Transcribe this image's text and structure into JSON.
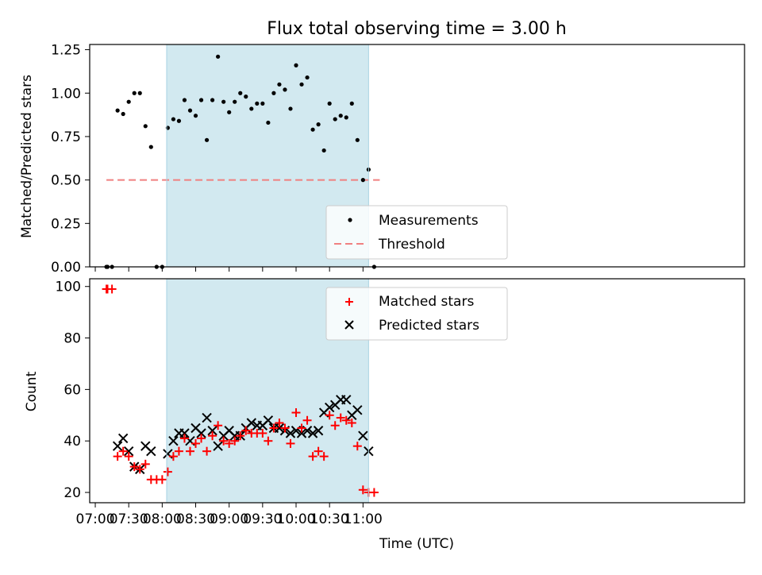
{
  "chart_data": [
    {
      "type": "scatter",
      "title": "Flux total observing time = 3.00 h",
      "xlabel": "",
      "ylabel": "Matched/Predicted stars",
      "ylim": [
        0,
        1.28
      ],
      "xlim_minutes": [
        415,
        1002
      ],
      "yticks": [
        "0.00",
        "0.25",
        "0.50",
        "0.75",
        "1.00",
        "1.25"
      ],
      "ytick_values": [
        0,
        0.25,
        0.5,
        0.75,
        1.0,
        1.25
      ],
      "shaded_span": [
        "08:04",
        "11:05"
      ],
      "shade_color": "#d2e9f0",
      "threshold": {
        "label": "Threshold",
        "value": 0.5,
        "x_start": "07:10",
        "x_end": "11:15",
        "color": "#f08080"
      },
      "legend": {
        "position": "bottom-center",
        "entries": [
          "Measurements",
          "Threshold"
        ]
      },
      "series": [
        {
          "name": "Measurements",
          "color": "#000000",
          "points": [
            [
              "07:10",
              0.0
            ],
            [
              "07:11",
              0.0
            ],
            [
              "07:15",
              0.0
            ],
            [
              "07:20",
              0.9
            ],
            [
              "07:25",
              0.88
            ],
            [
              "07:30",
              0.95
            ],
            [
              "07:35",
              1.0
            ],
            [
              "07:40",
              1.0
            ],
            [
              "07:45",
              0.81
            ],
            [
              "07:50",
              0.69
            ],
            [
              "07:55",
              0.0
            ],
            [
              "08:00",
              0.0
            ],
            [
              "08:05",
              0.8
            ],
            [
              "08:10",
              0.85
            ],
            [
              "08:15",
              0.84
            ],
            [
              "08:20",
              0.96
            ],
            [
              "08:25",
              0.9
            ],
            [
              "08:30",
              0.87
            ],
            [
              "08:35",
              0.96
            ],
            [
              "08:40",
              0.73
            ],
            [
              "08:45",
              0.96
            ],
            [
              "08:50",
              1.21
            ],
            [
              "08:55",
              0.95
            ],
            [
              "09:00",
              0.89
            ],
            [
              "09:05",
              0.95
            ],
            [
              "09:10",
              1.0
            ],
            [
              "09:15",
              0.98
            ],
            [
              "09:20",
              0.91
            ],
            [
              "09:25",
              0.94
            ],
            [
              "09:30",
              0.94
            ],
            [
              "09:35",
              0.83
            ],
            [
              "09:40",
              1.0
            ],
            [
              "09:45",
              1.05
            ],
            [
              "09:50",
              1.02
            ],
            [
              "09:55",
              0.91
            ],
            [
              "10:00",
              1.16
            ],
            [
              "10:05",
              1.05
            ],
            [
              "10:10",
              1.09
            ],
            [
              "10:15",
              0.79
            ],
            [
              "10:20",
              0.82
            ],
            [
              "10:25",
              0.67
            ],
            [
              "10:30",
              0.94
            ],
            [
              "10:35",
              0.85
            ],
            [
              "10:40",
              0.87
            ],
            [
              "10:45",
              0.86
            ],
            [
              "10:50",
              0.94
            ],
            [
              "10:55",
              0.73
            ],
            [
              "11:00",
              0.5
            ],
            [
              "11:05",
              0.56
            ],
            [
              "11:10",
              0.0
            ]
          ]
        }
      ]
    },
    {
      "type": "scatter",
      "title": "",
      "xlabel": "Time (UTC)",
      "ylabel": "Count",
      "ylim": [
        16,
        103
      ],
      "xlim_minutes": [
        415,
        1002
      ],
      "yticks": [
        "20",
        "40",
        "60",
        "80",
        "100"
      ],
      "ytick_values": [
        20,
        40,
        60,
        80,
        100
      ],
      "xticks": [
        "07:00",
        "07:30",
        "08:00",
        "08:30",
        "09:00",
        "09:30",
        "10:00",
        "10:30",
        "11:00"
      ],
      "xtick_minutes": [
        420,
        450,
        480,
        510,
        540,
        570,
        600,
        630,
        660
      ],
      "shaded_span": [
        "08:04",
        "11:05"
      ],
      "shade_color": "#d2e9f0",
      "legend": {
        "position": "top-center",
        "entries": [
          "Matched stars",
          "Predicted stars"
        ]
      },
      "series": [
        {
          "name": "Matched stars",
          "marker": "plus",
          "color": "#ff0000",
          "points": [
            [
              "07:10",
              99
            ],
            [
              "07:11",
              99
            ],
            [
              "07:15",
              99
            ],
            [
              "07:20",
              34
            ],
            [
              "07:25",
              36
            ],
            [
              "07:30",
              34
            ],
            [
              "07:35",
              30
            ],
            [
              "07:40",
              29
            ],
            [
              "07:45",
              31
            ],
            [
              "07:50",
              25
            ],
            [
              "07:55",
              25
            ],
            [
              "08:00",
              25
            ],
            [
              "08:05",
              28
            ],
            [
              "08:10",
              34
            ],
            [
              "08:15",
              36
            ],
            [
              "08:20",
              41
            ],
            [
              "08:25",
              36
            ],
            [
              "08:30",
              39
            ],
            [
              "08:35",
              41
            ],
            [
              "08:40",
              36
            ],
            [
              "08:45",
              42
            ],
            [
              "08:50",
              46
            ],
            [
              "08:55",
              40
            ],
            [
              "09:00",
              39
            ],
            [
              "09:05",
              40
            ],
            [
              "09:10",
              42
            ],
            [
              "09:15",
              44
            ],
            [
              "09:20",
              43
            ],
            [
              "09:25",
              43
            ],
            [
              "09:30",
              43
            ],
            [
              "09:35",
              40
            ],
            [
              "09:40",
              45
            ],
            [
              "09:45",
              47
            ],
            [
              "09:50",
              45
            ],
            [
              "09:55",
              39
            ],
            [
              "10:00",
              51
            ],
            [
              "10:05",
              45
            ],
            [
              "10:10",
              48
            ],
            [
              "10:15",
              34
            ],
            [
              "10:20",
              36
            ],
            [
              "10:25",
              34
            ],
            [
              "10:30",
              50
            ],
            [
              "10:35",
              46
            ],
            [
              "10:40",
              49
            ],
            [
              "10:45",
              48
            ],
            [
              "10:50",
              47
            ],
            [
              "10:55",
              38
            ],
            [
              "11:00",
              21
            ],
            [
              "11:05",
              20
            ],
            [
              "11:10",
              20
            ]
          ]
        },
        {
          "name": "Predicted stars",
          "marker": "x",
          "color": "#000000",
          "points": [
            [
              "07:20",
              38
            ],
            [
              "07:25",
              41
            ],
            [
              "07:30",
              36
            ],
            [
              "07:35",
              30
            ],
            [
              "07:40",
              29
            ],
            [
              "07:45",
              38
            ],
            [
              "07:50",
              36
            ],
            [
              "08:05",
              35
            ],
            [
              "08:10",
              40
            ],
            [
              "08:15",
              43
            ],
            [
              "08:20",
              43
            ],
            [
              "08:25",
              40
            ],
            [
              "08:30",
              45
            ],
            [
              "08:35",
              43
            ],
            [
              "08:40",
              49
            ],
            [
              "08:45",
              44
            ],
            [
              "08:50",
              38
            ],
            [
              "08:55",
              42
            ],
            [
              "09:00",
              44
            ],
            [
              "09:05",
              42
            ],
            [
              "09:10",
              42
            ],
            [
              "09:15",
              45
            ],
            [
              "09:20",
              47
            ],
            [
              "09:25",
              46
            ],
            [
              "09:30",
              46
            ],
            [
              "09:35",
              48
            ],
            [
              "09:40",
              45
            ],
            [
              "09:45",
              45
            ],
            [
              "09:50",
              44
            ],
            [
              "09:55",
              43
            ],
            [
              "10:00",
              44
            ],
            [
              "10:05",
              43
            ],
            [
              "10:10",
              44
            ],
            [
              "10:15",
              43
            ],
            [
              "10:20",
              44
            ],
            [
              "10:25",
              51
            ],
            [
              "10:30",
              53
            ],
            [
              "10:35",
              54
            ],
            [
              "10:40",
              56
            ],
            [
              "10:45",
              56
            ],
            [
              "10:50",
              50
            ],
            [
              "10:55",
              52
            ],
            [
              "11:00",
              42
            ],
            [
              "11:05",
              36
            ]
          ]
        }
      ]
    }
  ]
}
